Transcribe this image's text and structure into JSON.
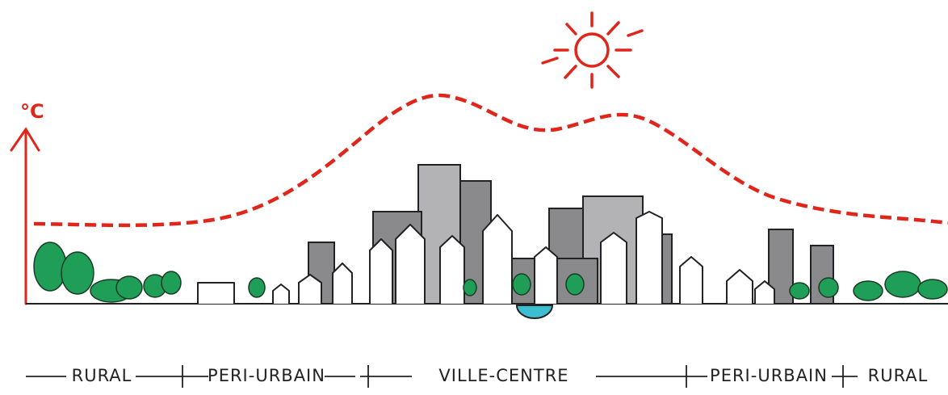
{
  "axis": {
    "label": "°C"
  },
  "zones": [
    {
      "label": "RURAL"
    },
    {
      "label": "PERI-URBAIN"
    },
    {
      "label": "VILLE-CENTRE"
    },
    {
      "label": "PERI-URBAIN"
    },
    {
      "label": "RURAL"
    }
  ]
}
